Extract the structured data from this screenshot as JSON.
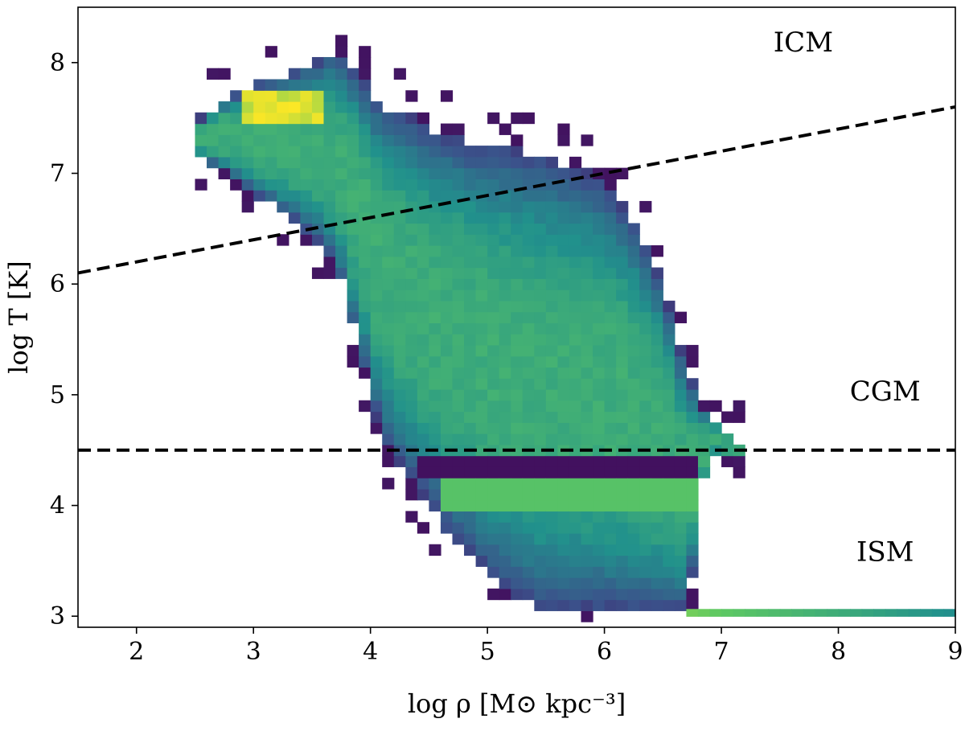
{
  "chart_data": {
    "type": "heatmap",
    "title": "",
    "xlabel": "log ρ [M⊙ kpc⁻³]",
    "ylabel": "log T [K]",
    "xlim": [
      1.5,
      9.0
    ],
    "ylim": [
      2.9,
      8.5
    ],
    "x_ticks": [
      "2",
      "3",
      "4",
      "5",
      "6",
      "7",
      "8",
      "9"
    ],
    "y_ticks": [
      "3",
      "4",
      "5",
      "6",
      "7",
      "8"
    ],
    "grid": false,
    "colormap": "viridis",
    "colors": {
      "low": "#440154",
      "mid": "#21918c",
      "high": "#fde725"
    },
    "divider_lines": [
      {
        "name": "ICM-CGM boundary",
        "x": [
          1.5,
          9.0
        ],
        "y": [
          6.1,
          7.6
        ],
        "style": "dashed"
      },
      {
        "name": "CGM-ISM boundary",
        "x": [
          1.5,
          9.0
        ],
        "y": [
          4.5,
          4.5
        ],
        "style": "dashed"
      }
    ],
    "region_labels": [
      {
        "text": "ICM",
        "x": 7.7,
        "y": 8.1
      },
      {
        "text": "CGM",
        "x": 8.4,
        "y": 4.95
      },
      {
        "text": "ISM",
        "x": 8.4,
        "y": 3.5
      }
    ],
    "density_envelope": {
      "description": "upper/lower log T bounds of the occupied histogram region per log rho column",
      "x": [
        2.5,
        2.7,
        2.9,
        3.1,
        3.3,
        3.5,
        3.7,
        3.9,
        4.1,
        4.3,
        4.5,
        4.7,
        4.9,
        5.1,
        5.3,
        5.5,
        5.7,
        5.9,
        6.1,
        6.3,
        6.5,
        6.7,
        6.9,
        7.1
      ],
      "upper": [
        7.45,
        7.65,
        7.75,
        7.85,
        7.9,
        8.0,
        8.1,
        7.9,
        7.6,
        7.55,
        7.4,
        7.35,
        7.25,
        7.25,
        7.2,
        7.15,
        7.05,
        7.0,
        6.8,
        6.5,
        6.0,
        5.2,
        4.8,
        4.6
      ],
      "lower": [
        7.15,
        7.05,
        6.9,
        6.75,
        6.6,
        6.45,
        6.2,
        5.4,
        4.6,
        4.3,
        4.0,
        3.7,
        3.5,
        3.3,
        3.15,
        3.05,
        3.05,
        3.05,
        3.05,
        3.05,
        3.05,
        3.05,
        4.45,
        4.45
      ]
    },
    "hot_spot": {
      "x": [
        2.9,
        3.6
      ],
      "y": [
        7.45,
        7.7
      ]
    },
    "ism_ridge": {
      "x": [
        4.6,
        6.75
      ],
      "y": 4.1
    },
    "floor_band": {
      "x": [
        6.7,
        9.0
      ],
      "y": 3.03
    }
  }
}
